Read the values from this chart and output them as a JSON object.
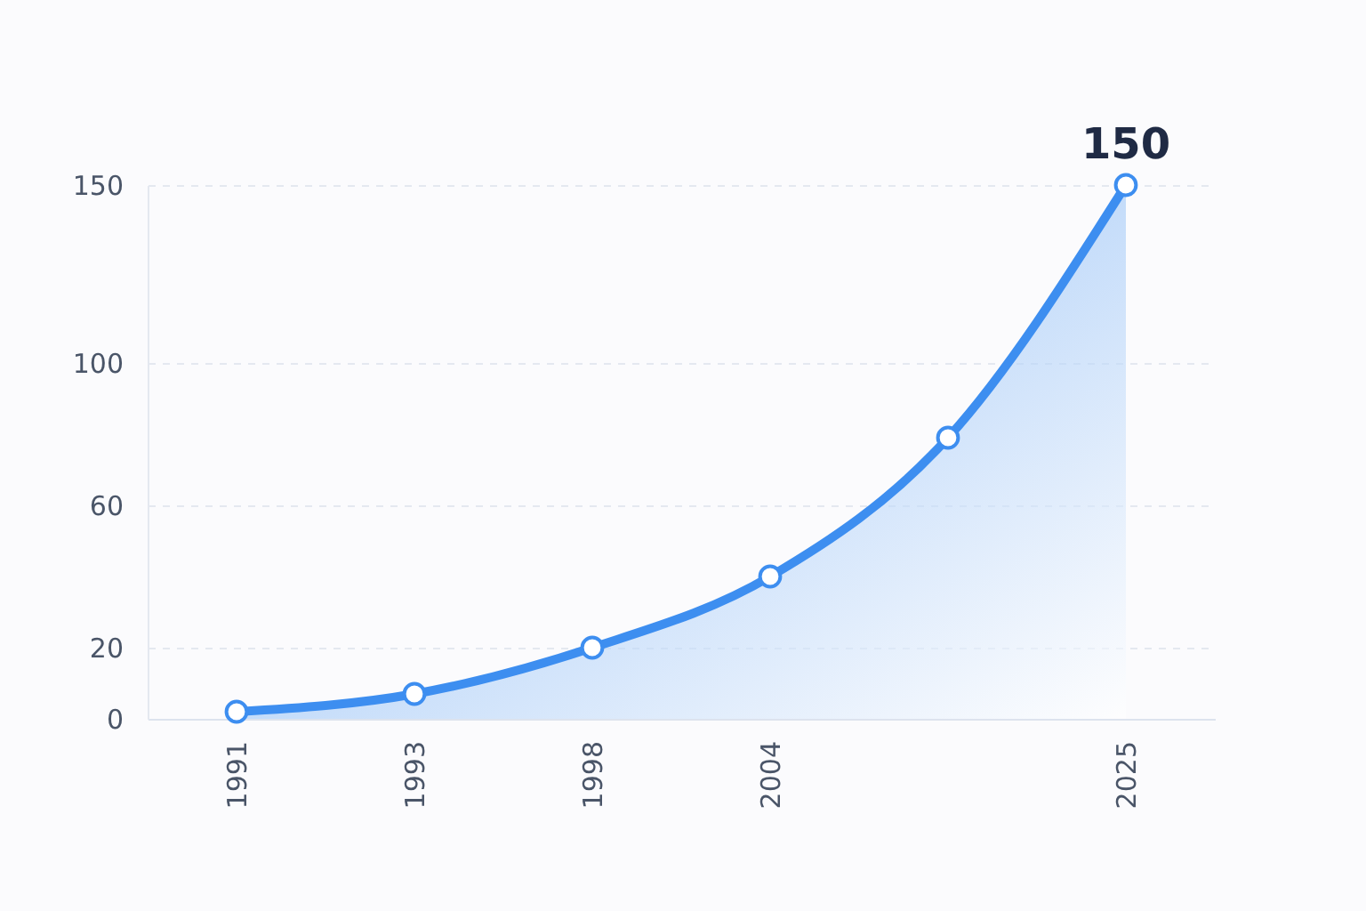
{
  "chart_data": {
    "type": "area",
    "categories": [
      "1991",
      "1993",
      "1998",
      "2004",
      null,
      "2025"
    ],
    "series": [
      {
        "color": "#3d8ef0",
        "values": [
          2,
          7,
          20,
          40,
          79,
          150
        ]
      }
    ],
    "ylim": [
      0,
      150
    ],
    "yticks": [
      0,
      20,
      60,
      100,
      150
    ],
    "grid": "y",
    "marker": "circle",
    "annotations": [
      {
        "text": "150",
        "x": "2025",
        "y": 150
      }
    ]
  }
}
